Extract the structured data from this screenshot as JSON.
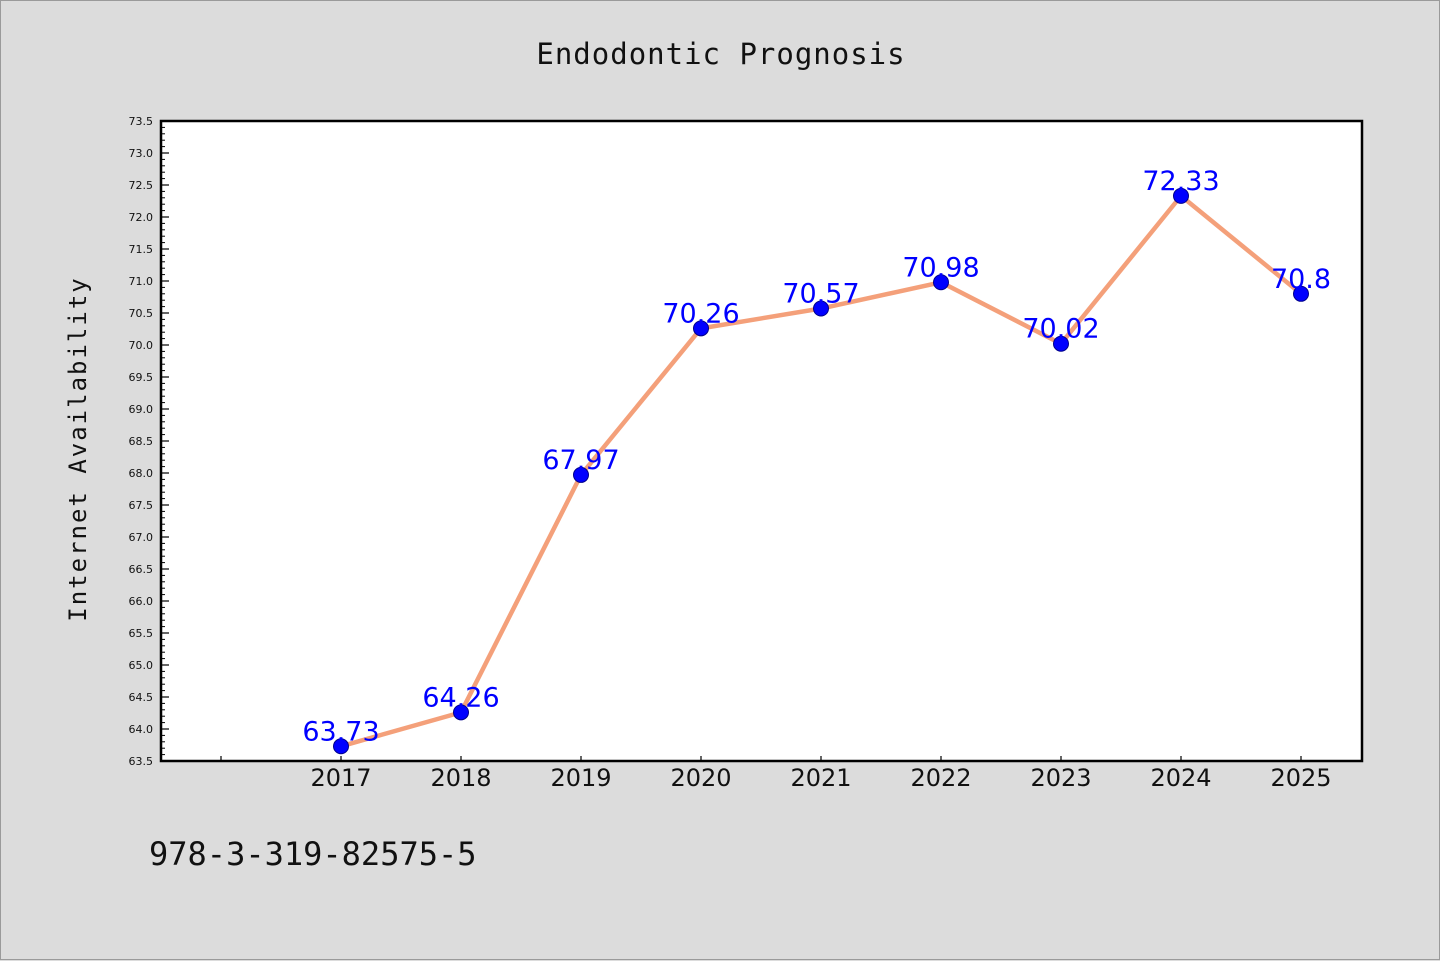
{
  "chart_data": {
    "type": "line",
    "title": "Endodontic Prognosis",
    "xlabel": "",
    "ylabel": "Internet Availability",
    "x": [
      "2017",
      "2018",
      "2019",
      "2020",
      "2021",
      "2022",
      "2023",
      "2024",
      "2025"
    ],
    "series": [
      {
        "values": [
          63.73,
          64.26,
          67.97,
          70.26,
          70.57,
          70.98,
          70.02,
          72.33,
          70.8
        ]
      }
    ],
    "data_labels": [
      "63.73",
      "64.26",
      "67.97",
      "70.26",
      "70.57",
      "70.98",
      "70.02",
      "72.33",
      "70.8"
    ],
    "ylim": [
      63.5,
      73.5
    ],
    "yticks": [
      "63.5",
      "64.0",
      "64.5",
      "65.0",
      "65.5",
      "66.0",
      "66.5",
      "67.0",
      "67.5",
      "68.0",
      "68.5",
      "69.0",
      "69.5",
      "70.0",
      "70.5",
      "71.0",
      "71.5",
      "72.0",
      "72.5",
      "73.0",
      "73.5"
    ],
    "grid": false,
    "legend": "none",
    "line_color": "#f4a07a",
    "marker_color": "#0000ff",
    "label_color": "#0000ff"
  },
  "footer": {
    "text": "978-3-319-82575-5"
  }
}
